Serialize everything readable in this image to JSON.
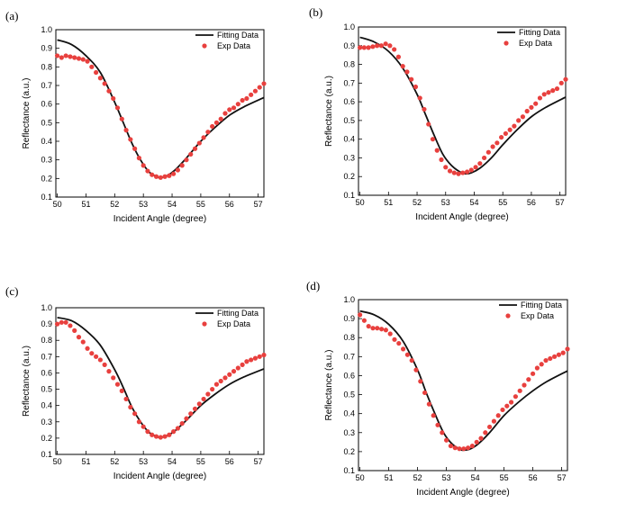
{
  "chart_data": [
    {
      "panel": "(a)",
      "type": "line+scatter",
      "xlabel": "Incident Angle (degree)",
      "ylabel": "Reflectance (a.u.)",
      "xlim": [
        49.95,
        57.2
      ],
      "ylim": [
        0.1,
        1.0
      ],
      "xticks": [
        50,
        51,
        52,
        53,
        54,
        55,
        56,
        57
      ],
      "yticks": [
        0.1,
        0.2,
        0.3,
        0.4,
        0.5,
        0.6,
        0.7,
        0.8,
        0.9,
        1.0
      ],
      "series": [
        {
          "name": "Fitting Data",
          "kind": "line",
          "color": "#111111",
          "x": [
            50.0,
            50.5,
            51.0,
            51.5,
            52.0,
            52.3,
            52.6,
            52.9,
            53.2,
            53.5,
            53.6,
            53.8,
            54.1,
            54.5,
            55.0,
            55.5,
            56.0,
            56.5,
            57.2
          ],
          "y": [
            0.945,
            0.92,
            0.86,
            0.77,
            0.61,
            0.5,
            0.39,
            0.3,
            0.235,
            0.207,
            0.205,
            0.212,
            0.245,
            0.31,
            0.4,
            0.475,
            0.54,
            0.585,
            0.635
          ]
        },
        {
          "name": "Exp Data",
          "kind": "scatter",
          "color": "#e8403e",
          "x": [
            50.0,
            50.15,
            50.3,
            50.45,
            50.6,
            50.75,
            50.9,
            51.05,
            51.2,
            51.35,
            51.5,
            51.65,
            51.8,
            51.95,
            52.1,
            52.25,
            52.4,
            52.55,
            52.7,
            52.85,
            53.0,
            53.15,
            53.3,
            53.45,
            53.6,
            53.75,
            53.9,
            54.05,
            54.2,
            54.35,
            54.5,
            54.65,
            54.8,
            54.95,
            55.1,
            55.25,
            55.4,
            55.55,
            55.7,
            55.85,
            56.0,
            56.15,
            56.3,
            56.45,
            56.6,
            56.75,
            56.9,
            57.05,
            57.2
          ],
          "y": [
            0.86,
            0.85,
            0.86,
            0.855,
            0.85,
            0.845,
            0.84,
            0.83,
            0.8,
            0.77,
            0.74,
            0.71,
            0.67,
            0.63,
            0.58,
            0.52,
            0.46,
            0.41,
            0.36,
            0.31,
            0.27,
            0.24,
            0.22,
            0.21,
            0.205,
            0.21,
            0.215,
            0.225,
            0.245,
            0.27,
            0.3,
            0.33,
            0.36,
            0.39,
            0.42,
            0.45,
            0.48,
            0.5,
            0.52,
            0.55,
            0.57,
            0.58,
            0.6,
            0.62,
            0.63,
            0.65,
            0.67,
            0.69,
            0.71
          ]
        }
      ]
    },
    {
      "panel": "(b)",
      "type": "line+scatter",
      "xlabel": "Incident Angle (degree)",
      "ylabel": "Reflectance (a.u.)",
      "xlim": [
        49.95,
        57.2
      ],
      "ylim": [
        0.1,
        1.0
      ],
      "xticks": [
        50,
        51,
        52,
        53,
        54,
        55,
        56,
        57
      ],
      "yticks": [
        0.1,
        0.2,
        0.3,
        0.4,
        0.5,
        0.6,
        0.7,
        0.8,
        0.9,
        1.0
      ],
      "series": [
        {
          "name": "Fitting Data",
          "kind": "line",
          "color": "#111111",
          "x": [
            50.0,
            50.5,
            51.0,
            51.5,
            52.0,
            52.3,
            52.6,
            52.9,
            53.2,
            53.5,
            53.7,
            53.9,
            54.2,
            54.6,
            55.0,
            55.5,
            56.0,
            56.5,
            57.2
          ],
          "y": [
            0.945,
            0.92,
            0.87,
            0.78,
            0.64,
            0.53,
            0.42,
            0.32,
            0.26,
            0.225,
            0.215,
            0.22,
            0.245,
            0.3,
            0.37,
            0.45,
            0.52,
            0.57,
            0.625
          ]
        },
        {
          "name": "Exp Data",
          "kind": "scatter",
          "color": "#e8403e",
          "x": [
            50.0,
            50.15,
            50.3,
            50.45,
            50.6,
            50.75,
            50.9,
            51.05,
            51.2,
            51.35,
            51.5,
            51.65,
            51.8,
            51.95,
            52.1,
            52.25,
            52.4,
            52.55,
            52.7,
            52.85,
            53.0,
            53.15,
            53.3,
            53.45,
            53.6,
            53.75,
            53.9,
            54.05,
            54.2,
            54.35,
            54.5,
            54.65,
            54.8,
            54.95,
            55.1,
            55.25,
            55.4,
            55.55,
            55.7,
            55.85,
            56.0,
            56.15,
            56.3,
            56.45,
            56.6,
            56.75,
            56.9,
            57.05,
            57.2
          ],
          "y": [
            0.89,
            0.89,
            0.89,
            0.895,
            0.9,
            0.9,
            0.91,
            0.9,
            0.88,
            0.84,
            0.79,
            0.76,
            0.72,
            0.68,
            0.62,
            0.56,
            0.48,
            0.4,
            0.34,
            0.29,
            0.25,
            0.23,
            0.22,
            0.215,
            0.22,
            0.225,
            0.235,
            0.25,
            0.27,
            0.3,
            0.33,
            0.36,
            0.38,
            0.41,
            0.43,
            0.45,
            0.47,
            0.5,
            0.52,
            0.55,
            0.57,
            0.59,
            0.62,
            0.64,
            0.65,
            0.66,
            0.67,
            0.7,
            0.72
          ]
        }
      ]
    },
    {
      "panel": "(c)",
      "type": "line+scatter",
      "xlabel": "Incident Angle (degree)",
      "ylabel": "Reflectance (a.u.)",
      "xlim": [
        49.95,
        57.2
      ],
      "ylim": [
        0.1,
        1.0
      ],
      "xticks": [
        50,
        51,
        52,
        53,
        54,
        55,
        56,
        57
      ],
      "yticks": [
        0.1,
        0.2,
        0.3,
        0.4,
        0.5,
        0.6,
        0.7,
        0.8,
        0.9,
        1.0
      ],
      "series": [
        {
          "name": "Fitting Data",
          "kind": "line",
          "color": "#111111",
          "x": [
            50.0,
            50.5,
            51.0,
            51.5,
            52.0,
            52.3,
            52.6,
            52.9,
            53.2,
            53.5,
            53.6,
            53.8,
            54.1,
            54.5,
            55.0,
            55.5,
            56.0,
            56.5,
            57.2
          ],
          "y": [
            0.94,
            0.92,
            0.86,
            0.77,
            0.62,
            0.51,
            0.39,
            0.3,
            0.235,
            0.207,
            0.205,
            0.212,
            0.245,
            0.31,
            0.4,
            0.47,
            0.53,
            0.575,
            0.625
          ]
        },
        {
          "name": "Exp Data",
          "kind": "scatter",
          "color": "#e8403e",
          "x": [
            50.0,
            50.15,
            50.3,
            50.45,
            50.6,
            50.75,
            50.9,
            51.05,
            51.2,
            51.35,
            51.5,
            51.65,
            51.8,
            51.95,
            52.1,
            52.25,
            52.4,
            52.55,
            52.7,
            52.85,
            53.0,
            53.15,
            53.3,
            53.45,
            53.6,
            53.75,
            53.9,
            54.05,
            54.2,
            54.35,
            54.5,
            54.65,
            54.8,
            54.95,
            55.1,
            55.25,
            55.4,
            55.55,
            55.7,
            55.85,
            56.0,
            56.15,
            56.3,
            56.45,
            56.6,
            56.75,
            56.9,
            57.05,
            57.2
          ],
          "y": [
            0.9,
            0.91,
            0.91,
            0.89,
            0.86,
            0.82,
            0.79,
            0.75,
            0.72,
            0.7,
            0.68,
            0.65,
            0.61,
            0.57,
            0.53,
            0.49,
            0.44,
            0.39,
            0.35,
            0.3,
            0.27,
            0.24,
            0.22,
            0.21,
            0.205,
            0.21,
            0.22,
            0.24,
            0.26,
            0.29,
            0.32,
            0.35,
            0.38,
            0.41,
            0.44,
            0.47,
            0.5,
            0.53,
            0.55,
            0.57,
            0.59,
            0.61,
            0.63,
            0.65,
            0.67,
            0.68,
            0.69,
            0.7,
            0.71
          ]
        }
      ]
    },
    {
      "panel": "(d)",
      "type": "line+scatter",
      "xlabel": "Incident Angle (degree)",
      "ylabel": "Reflectance (a.u.)",
      "xlim": [
        49.95,
        57.2
      ],
      "ylim": [
        0.1,
        1.0
      ],
      "xticks": [
        50,
        51,
        52,
        53,
        54,
        55,
        56,
        57
      ],
      "yticks": [
        0.1,
        0.2,
        0.3,
        0.4,
        0.5,
        0.6,
        0.7,
        0.8,
        0.9,
        1.0
      ],
      "series": [
        {
          "name": "Fitting Data",
          "kind": "line",
          "color": "#111111",
          "x": [
            50.0,
            50.5,
            51.0,
            51.5,
            52.0,
            52.3,
            52.6,
            52.9,
            53.2,
            53.5,
            53.6,
            53.8,
            54.1,
            54.5,
            55.0,
            55.5,
            56.0,
            56.5,
            57.2
          ],
          "y": [
            0.94,
            0.92,
            0.87,
            0.78,
            0.63,
            0.51,
            0.4,
            0.3,
            0.24,
            0.21,
            0.208,
            0.212,
            0.24,
            0.3,
            0.39,
            0.46,
            0.52,
            0.57,
            0.625
          ]
        },
        {
          "name": "Exp Data",
          "kind": "scatter",
          "color": "#e8403e",
          "x": [
            50.0,
            50.15,
            50.3,
            50.45,
            50.6,
            50.75,
            50.9,
            51.05,
            51.2,
            51.35,
            51.5,
            51.65,
            51.8,
            51.95,
            52.1,
            52.25,
            52.4,
            52.55,
            52.7,
            52.85,
            53.0,
            53.15,
            53.3,
            53.45,
            53.6,
            53.75,
            53.9,
            54.05,
            54.2,
            54.35,
            54.5,
            54.65,
            54.8,
            54.95,
            55.1,
            55.25,
            55.4,
            55.55,
            55.7,
            55.85,
            56.0,
            56.15,
            56.3,
            56.45,
            56.6,
            56.75,
            56.9,
            57.05,
            57.2
          ],
          "y": [
            0.92,
            0.89,
            0.86,
            0.85,
            0.85,
            0.845,
            0.84,
            0.82,
            0.79,
            0.77,
            0.74,
            0.71,
            0.68,
            0.63,
            0.57,
            0.51,
            0.45,
            0.39,
            0.34,
            0.3,
            0.26,
            0.23,
            0.22,
            0.215,
            0.215,
            0.22,
            0.23,
            0.25,
            0.27,
            0.3,
            0.33,
            0.36,
            0.39,
            0.42,
            0.44,
            0.46,
            0.49,
            0.52,
            0.55,
            0.58,
            0.61,
            0.64,
            0.66,
            0.68,
            0.69,
            0.7,
            0.71,
            0.72,
            0.74
          ]
        }
      ]
    }
  ]
}
